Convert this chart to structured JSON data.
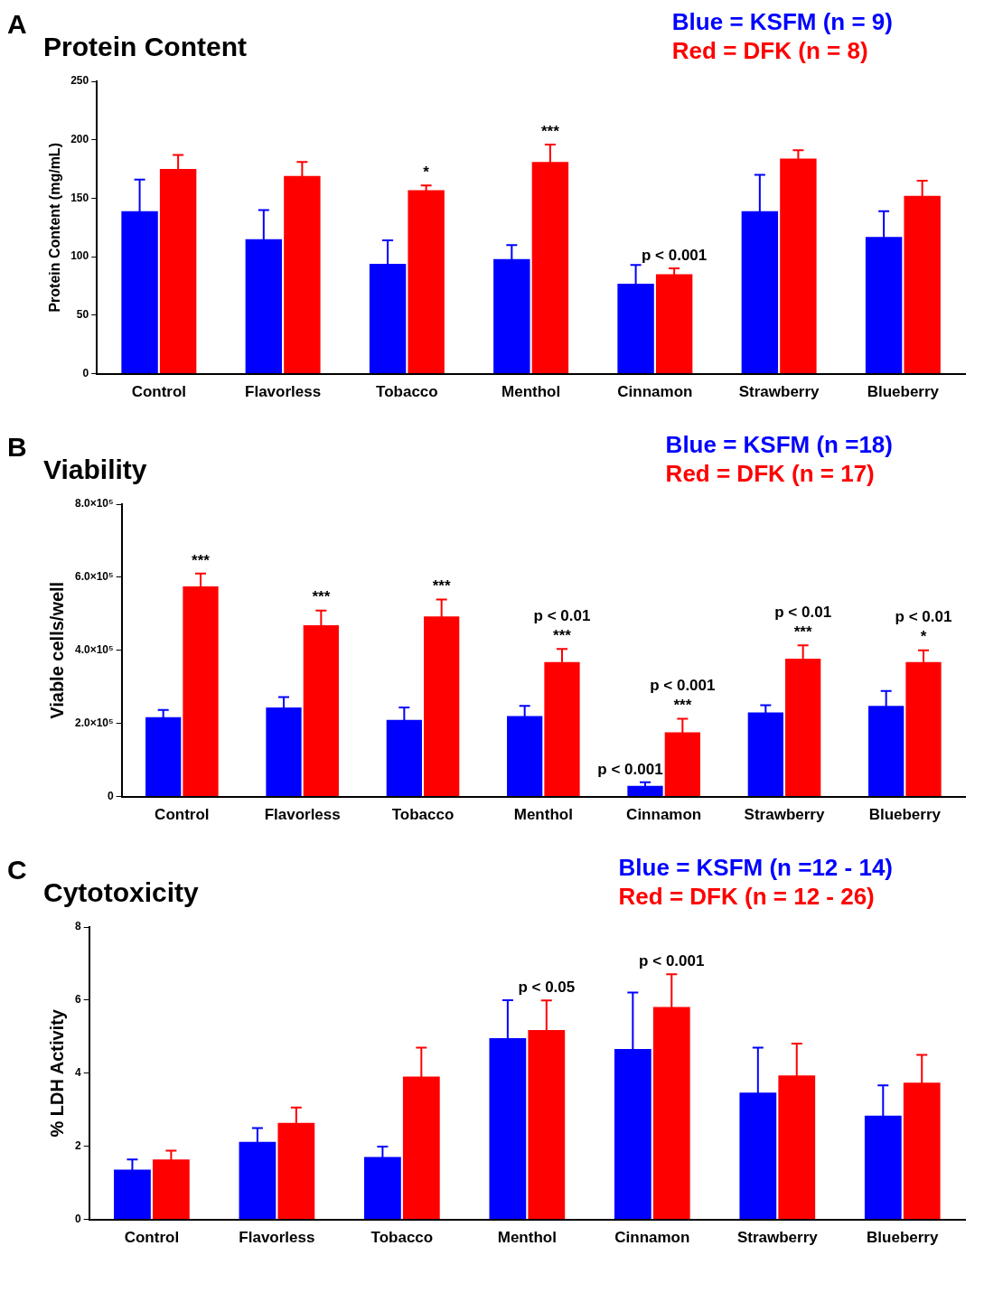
{
  "chart_data": [
    {
      "type": "bar",
      "title": "Protein Content",
      "ylabel": "Protein Content (mg/mL)",
      "categories": [
        "Control",
        "Flavorless",
        "Tobacco",
        "Menthol",
        "Cinnamon",
        "Strawberry",
        "Blueberry"
      ],
      "series": [
        {
          "name": "Blue = KSFM (n = 9)",
          "color": "#0000ff",
          "values": [
            139,
            115,
            94,
            98,
            77,
            139,
            117
          ],
          "errors": [
            27,
            25,
            20,
            12,
            16,
            31,
            22
          ]
        },
        {
          "name": "Red = DFK (n = 8)",
          "color": "#ff0000",
          "values": [
            175,
            169,
            157,
            181,
            85,
            184,
            152
          ],
          "errors": [
            12,
            12,
            4,
            15,
            5,
            7,
            13
          ]
        }
      ],
      "ylim": [
        0,
        250
      ],
      "yticks": [
        0,
        50,
        100,
        150,
        200,
        250
      ],
      "grid": false,
      "legend": "top right",
      "annotations": [
        "A",
        {
          "text": "*",
          "x": "Tobacco",
          "y": 157
        },
        {
          "text": "***",
          "x": "Menthol",
          "y": 181
        },
        {
          "text": "p < 0.001",
          "x": "Cinnamon",
          "y": 85
        }
      ]
    },
    {
      "type": "bar",
      "title": "Viability",
      "ylabel": "Viable cells/well",
      "categories": [
        "Control",
        "Flavorless",
        "Tobacco",
        "Menthol",
        "Cinnamon",
        "Strawberry",
        "Blueberry"
      ],
      "series": [
        {
          "name": "Blue = KSFM (n =18)",
          "color": "#0000ff",
          "values": [
            217000,
            244000,
            210000,
            220000,
            29000,
            230000,
            248000
          ],
          "errors": [
            20000,
            28000,
            34000,
            28000,
            10000,
            20000,
            41000
          ]
        },
        {
          "name": "Red = DFK (n = 17)",
          "color": "#ff0000",
          "values": [
            575000,
            469000,
            493000,
            368000,
            176000,
            377000,
            368000
          ],
          "errors": [
            35000,
            40000,
            46000,
            36000,
            37000,
            37000,
            32000
          ]
        }
      ],
      "ylim": [
        0,
        800000
      ],
      "yticks": [
        0,
        {
          "value": 200000,
          "label": "2.0×10⁵"
        },
        {
          "value": 400000,
          "label": "4.0×10⁵"
        },
        {
          "value": 600000,
          "label": "6.0×10⁵"
        },
        {
          "value": 800000,
          "label": "8.0×10⁵"
        }
      ],
      "grid": false,
      "legend": "top right",
      "annotations": [
        "B",
        {
          "text": "***",
          "x": "Control",
          "y": 575000
        },
        {
          "text": "***",
          "x": "Flavorless",
          "y": 469000
        },
        {
          "text": "***",
          "x": "Tobacco",
          "y": 493000
        },
        {
          "text": "***",
          "x": "Menthol",
          "y": 368000
        },
        {
          "text": "p < 0.01",
          "x": "Menthol",
          "y": 368000
        },
        {
          "text": "***",
          "x": "Cinnamon",
          "y": 176000
        },
        {
          "text": "p < 0.001",
          "x": "Cinnamon",
          "y": 29000
        },
        {
          "text": "p < 0.001",
          "x": "Cinnamon",
          "y": 176000
        },
        {
          "text": "***",
          "x": "Strawberry",
          "y": 377000
        },
        {
          "text": "p < 0.01",
          "x": "Strawberry",
          "y": 377000
        },
        {
          "text": "*",
          "x": "Blueberry",
          "y": 368000
        },
        {
          "text": "p < 0.01",
          "x": "Blueberry",
          "y": 368000
        }
      ]
    },
    {
      "type": "bar",
      "title": "Cytotoxicity",
      "ylabel": "% LDH Activity",
      "categories": [
        "Control",
        "Flavorless",
        "Tobacco",
        "Menthol",
        "Cinnamon",
        "Strawberry",
        "Blueberry"
      ],
      "series": [
        {
          "name": "Blue = KSFM (n =12 - 14)",
          "color": "#0000ff",
          "values": [
            1.36,
            2.12,
            1.71,
            4.96,
            4.66,
            3.47,
            2.84
          ],
          "errors": [
            0.28,
            0.38,
            0.28,
            1.04,
            1.55,
            1.23,
            0.83
          ]
        },
        {
          "name": "Red = DFK (n = 12 - 26)",
          "color": "#ff0000",
          "values": [
            1.64,
            2.64,
            3.91,
            5.18,
            5.81,
            3.94,
            3.74
          ],
          "errors": [
            0.24,
            0.42,
            0.79,
            0.81,
            0.9,
            0.87,
            0.76
          ]
        }
      ],
      "ylim": [
        0,
        8
      ],
      "yticks": [
        0,
        2,
        4,
        6,
        8
      ],
      "grid": false,
      "legend": "top right",
      "annotations": [
        "C",
        {
          "text": "p < 0.05",
          "x": "Menthol",
          "y": 5.18
        },
        {
          "text": "p < 0.001",
          "x": "Cinnamon",
          "y": 5.81
        }
      ]
    }
  ]
}
